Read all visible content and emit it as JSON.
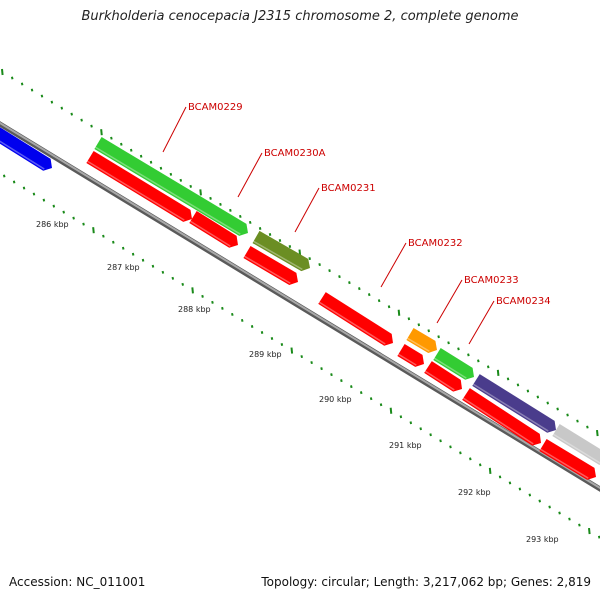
{
  "title": "Burkholderia cenocepacia J2315 chromosome 2, complete genome",
  "footer": {
    "accession": "Accession: NC_011001",
    "summary": "Topology: circular; Length: 3,217,062 bp; Genes: 2,819"
  },
  "colors": {
    "backbone": "#7a7a7a",
    "ticks": "#1a8a1a",
    "label_text": "#cc0000",
    "red_genes": "#ff0000",
    "green_genes": "#33cc33",
    "olive_genes": "#6b8e23",
    "orange_genes": "#ff9900",
    "blue_genes": "#0000ee",
    "purple_genes": "#4a3c8c",
    "grey_genes": "#c8c8c8"
  },
  "scale_labels": [
    "286 kbp",
    "287 kbp",
    "288 kbp",
    "289 kbp",
    "290 kbp",
    "291 kbp",
    "292 kbp",
    "293 kbp"
  ],
  "gene_labels": [
    "BCAM0229",
    "BCAM0230A",
    "BCAM0231",
    "BCAM0232",
    "BCAM0233",
    "BCAM0234"
  ]
}
